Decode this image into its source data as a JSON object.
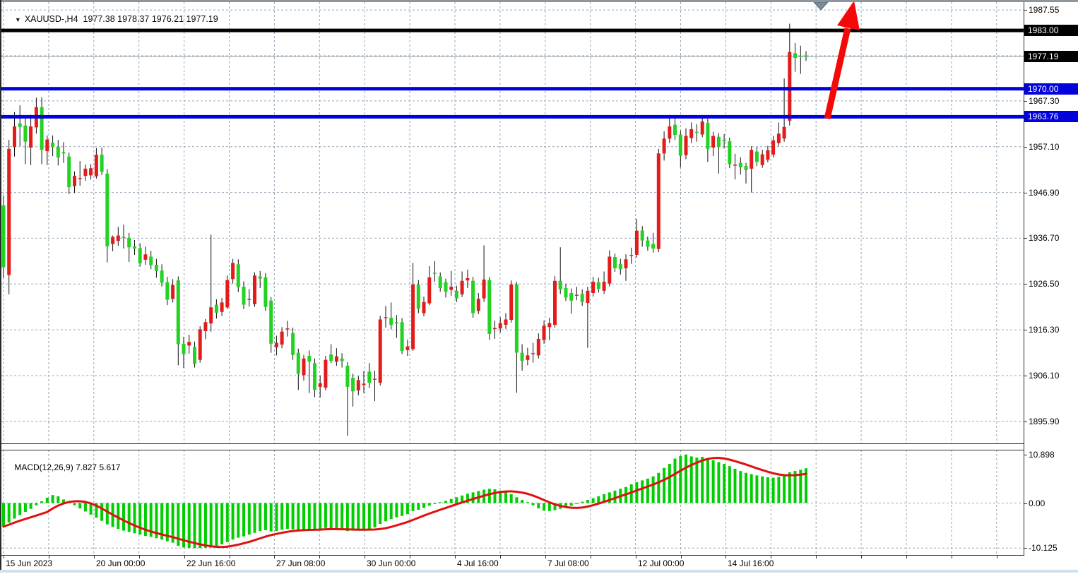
{
  "header": {
    "dropdown_icon": "triangle-down",
    "symbol_period": "XAUUSD-,H4",
    "open": "1977.38",
    "high": "1978.37",
    "low": "1976.21",
    "close": "1977.19"
  },
  "indicator_label": {
    "name": "MACD(12,26,9)",
    "main_value": "7.827",
    "signal_value": "5.617"
  },
  "price_axis": {
    "tick_labels": [
      "1987.55",
      "1967.30",
      "1957.10",
      "1946.90",
      "1936.70",
      "1926.50",
      "1916.30",
      "1906.10",
      "1895.90"
    ],
    "line_label_boxes": [
      {
        "text": "1983.00",
        "value": 1983.0,
        "bg": "#000000"
      },
      {
        "text": "1977.19",
        "value": 1977.19,
        "bg": "#000000"
      },
      {
        "text": "1970.00",
        "value": 1970.0,
        "bg": "#0202dd"
      },
      {
        "text": "1963.76",
        "value": 1963.76,
        "bg": "#0202dd"
      }
    ]
  },
  "macd_axis": [
    {
      "text": "10.898",
      "value": 10.898
    },
    {
      "text": "0.00",
      "value": 0.0
    },
    {
      "text": "-10.125",
      "value": -10.125
    }
  ],
  "chart_data": {
    "type": "candlestick",
    "symbol": "XAUUSD-",
    "timeframe": "H4",
    "ylim": [
      1891.0,
      1989.3
    ],
    "grid": true,
    "y_gridlines": [
      1987.55,
      1977.35,
      1967.3,
      1957.1,
      1946.9,
      1936.7,
      1926.5,
      1916.3,
      1906.1,
      1895.9
    ],
    "x_labels": [
      "15 Jun 2023",
      "20 Jun 00:00",
      "22 Jun 16:00",
      "27 Jun 08:00",
      "30 Jun 00:00",
      "4 Jul 16:00",
      "7 Jul 08:00",
      "12 Jul 00:00",
      "14 Jul 16:00"
    ],
    "bull_color": "#e31b1b",
    "bear_color": "#22d322",
    "wick_color": "#111111",
    "grid_color": "#97a7b7",
    "hlines": [
      {
        "value": 1983.0,
        "color": "#000000",
        "width": 5,
        "label": "1983.00"
      },
      {
        "value": 1970.0,
        "color": "#0202dd",
        "width": 5,
        "label": "1970.00"
      },
      {
        "value": 1963.76,
        "color": "#0202dd",
        "width": 5,
        "label": "1963.76"
      }
    ],
    "bid_line": {
      "value": 1977.19,
      "color": "#9aa4ae"
    },
    "candles": [
      [
        1944.0,
        1946.2,
        1927.8,
        1930.2
      ],
      [
        1928.5,
        1958.6,
        1924.2,
        1956.6
      ],
      [
        1957.0,
        1964.8,
        1954.9,
        1961.6
      ],
      [
        1962.3,
        1966.3,
        1957.2,
        1961.5
      ],
      [
        1961.8,
        1963.6,
        1953.2,
        1958.2
      ],
      [
        1956.9,
        1964.2,
        1953.0,
        1961.6
      ],
      [
        1961.4,
        1968.0,
        1960.0,
        1965.9
      ],
      [
        1965.9,
        1968.1,
        1953.2,
        1956.4
      ],
      [
        1956.1,
        1959.6,
        1953.0,
        1958.7
      ],
      [
        1958.0,
        1959.6,
        1955.0,
        1957.0
      ],
      [
        1957.1,
        1958.6,
        1952.9,
        1954.7
      ],
      [
        1955.9,
        1958.1,
        1953.5,
        1955.6
      ],
      [
        1954.9,
        1955.8,
        1946.5,
        1948.1
      ],
      [
        1948.3,
        1951.6,
        1946.8,
        1950.6
      ],
      [
        1950.0,
        1953.9,
        1948.4,
        1950.1
      ],
      [
        1950.6,
        1953.1,
        1949.5,
        1952.2
      ],
      [
        1950.7,
        1953.2,
        1949.8,
        1952.3
      ],
      [
        1950.5,
        1956.8,
        1950.0,
        1955.3
      ],
      [
        1955.3,
        1956.9,
        1950.8,
        1951.5
      ],
      [
        1951.1,
        1952.1,
        1931.3,
        1934.9
      ],
      [
        1935.4,
        1937.3,
        1933.8,
        1937.0
      ],
      [
        1936.1,
        1939.2,
        1935.0,
        1937.3
      ],
      [
        1937.0,
        1939.7,
        1934.4,
        1936.8
      ],
      [
        1936.8,
        1937.9,
        1931.4,
        1934.7
      ],
      [
        1934.9,
        1936.3,
        1933.0,
        1934.4
      ],
      [
        1934.5,
        1935.6,
        1930.4,
        1931.1
      ],
      [
        1931.9,
        1934.8,
        1930.8,
        1933.1
      ],
      [
        1932.6,
        1933.9,
        1929.8,
        1930.7
      ],
      [
        1930.8,
        1932.1,
        1927.9,
        1929.4
      ],
      [
        1929.5,
        1930.9,
        1925.9,
        1926.8
      ],
      [
        1926.9,
        1928.1,
        1921.8,
        1923.0
      ],
      [
        1923.2,
        1927.6,
        1922.4,
        1926.3
      ],
      [
        1927.3,
        1928.2,
        1908.4,
        1913.1
      ],
      [
        1913.2,
        1914.7,
        1907.8,
        1910.9
      ],
      [
        1912.8,
        1915.2,
        1911.0,
        1913.6
      ],
      [
        1912.5,
        1913.7,
        1907.9,
        1908.7
      ],
      [
        1909.6,
        1917.1,
        1909.0,
        1916.4
      ],
      [
        1916.0,
        1918.7,
        1914.2,
        1918.0
      ],
      [
        1917.7,
        1937.5,
        1915.9,
        1921.3
      ],
      [
        1921.9,
        1923.1,
        1918.8,
        1920.1
      ],
      [
        1920.3,
        1923.4,
        1919.4,
        1922.4
      ],
      [
        1921.3,
        1928.4,
        1920.9,
        1927.4
      ],
      [
        1927.6,
        1932.1,
        1926.6,
        1931.2
      ],
      [
        1930.9,
        1932.0,
        1924.7,
        1925.8
      ],
      [
        1925.9,
        1927.1,
        1920.9,
        1921.9
      ],
      [
        1923.0,
        1925.4,
        1921.5,
        1923.2
      ],
      [
        1922.0,
        1929.1,
        1921.4,
        1928.4
      ],
      [
        1928.2,
        1929.4,
        1925.6,
        1927.7
      ],
      [
        1928.0,
        1928.9,
        1920.5,
        1921.4
      ],
      [
        1922.8,
        1923.6,
        1911.2,
        1913.2
      ],
      [
        1912.4,
        1915.0,
        1910.6,
        1913.4
      ],
      [
        1913.0,
        1916.9,
        1912.2,
        1915.9
      ],
      [
        1916.4,
        1918.3,
        1914.8,
        1916.6
      ],
      [
        1915.6,
        1916.8,
        1909.6,
        1910.7
      ],
      [
        1911.2,
        1912.1,
        1902.9,
        1906.5
      ],
      [
        1906.2,
        1910.7,
        1905.0,
        1909.9
      ],
      [
        1910.5,
        1911.7,
        1902.2,
        1909.2
      ],
      [
        1908.9,
        1909.9,
        1901.3,
        1902.9
      ],
      [
        1903.6,
        1906.1,
        1901.2,
        1904.4
      ],
      [
        1903.4,
        1910.5,
        1902.8,
        1909.6
      ],
      [
        1910.8,
        1913.1,
        1908.9,
        1909.4
      ],
      [
        1909.2,
        1912.2,
        1908.3,
        1910.4
      ],
      [
        1909.9,
        1911.1,
        1907.9,
        1909.3
      ],
      [
        1908.3,
        1909.1,
        1892.7,
        1903.6
      ],
      [
        1905.6,
        1906.5,
        1899.2,
        1902.6
      ],
      [
        1902.8,
        1906.0,
        1901.7,
        1905.1
      ],
      [
        1904.0,
        1907.1,
        1902.2,
        1904.3
      ],
      [
        1907.0,
        1908.9,
        1903.3,
        1904.5
      ],
      [
        1905.2,
        1907.2,
        1900.4,
        1905.4
      ],
      [
        1904.5,
        1919.4,
        1903.9,
        1918.6
      ],
      [
        1919.0,
        1921.6,
        1916.8,
        1919.1
      ],
      [
        1919.0,
        1922.4,
        1916.4,
        1917.4
      ],
      [
        1918.0,
        1919.6,
        1914.5,
        1917.7
      ],
      [
        1918.0,
        1918.9,
        1910.9,
        1911.6
      ],
      [
        1911.8,
        1914.1,
        1910.5,
        1912.6
      ],
      [
        1912.0,
        1931.2,
        1911.6,
        1926.4
      ],
      [
        1926.4,
        1927.4,
        1920.0,
        1921.0
      ],
      [
        1920.0,
        1923.7,
        1919.3,
        1922.5
      ],
      [
        1922.2,
        1930.5,
        1921.8,
        1928.0
      ],
      [
        1929.0,
        1931.6,
        1927.0,
        1928.9
      ],
      [
        1928.2,
        1929.1,
        1924.8,
        1925.6
      ],
      [
        1926.9,
        1927.7,
        1923.5,
        1924.8
      ],
      [
        1925.2,
        1929.4,
        1923.9,
        1925.9
      ],
      [
        1925.0,
        1926.1,
        1922.5,
        1923.3
      ],
      [
        1924.2,
        1929.3,
        1923.6,
        1927.2
      ],
      [
        1927.3,
        1929.7,
        1925.6,
        1927.8
      ],
      [
        1927.2,
        1928.1,
        1919.0,
        1920.0
      ],
      [
        1920.5,
        1924.5,
        1919.8,
        1923.2
      ],
      [
        1923.3,
        1935.1,
        1922.5,
        1927.5
      ],
      [
        1927.4,
        1928.1,
        1914.1,
        1915.4
      ],
      [
        1916.5,
        1918.3,
        1914.3,
        1916.7
      ],
      [
        1916.6,
        1919.1,
        1915.7,
        1917.8
      ],
      [
        1917.4,
        1920.0,
        1916.5,
        1918.6
      ],
      [
        1918.5,
        1927.3,
        1917.9,
        1926.4
      ],
      [
        1926.4,
        1927.0,
        1902.3,
        1911.2
      ],
      [
        1911.2,
        1913.1,
        1907.2,
        1909.4
      ],
      [
        1909.6,
        1912.3,
        1908.4,
        1910.6
      ],
      [
        1911.0,
        1913.4,
        1909.0,
        1911.1
      ],
      [
        1910.6,
        1915.5,
        1909.9,
        1914.3
      ],
      [
        1914.0,
        1918.4,
        1913.2,
        1917.2
      ],
      [
        1916.9,
        1919.0,
        1914.0,
        1917.8
      ],
      [
        1917.4,
        1928.3,
        1916.8,
        1927.2
      ],
      [
        1927.2,
        1934.7,
        1924.3,
        1925.3
      ],
      [
        1925.6,
        1926.6,
        1922.7,
        1923.5
      ],
      [
        1924.5,
        1925.5,
        1919.9,
        1922.8
      ],
      [
        1924.0,
        1925.9,
        1922.9,
        1924.1
      ],
      [
        1924.3,
        1925.3,
        1921.6,
        1922.5
      ],
      [
        1922.3,
        1925.9,
        1912.3,
        1925.0
      ],
      [
        1924.5,
        1928.1,
        1923.7,
        1927.0
      ],
      [
        1926.9,
        1927.9,
        1924.6,
        1925.4
      ],
      [
        1925.0,
        1929.3,
        1924.3,
        1927.0
      ],
      [
        1926.6,
        1934.0,
        1926.0,
        1932.6
      ],
      [
        1932.5,
        1933.3,
        1929.2,
        1930.0
      ],
      [
        1931.0,
        1932.1,
        1928.6,
        1929.8
      ],
      [
        1930.0,
        1933.1,
        1927.2,
        1932.0
      ],
      [
        1932.8,
        1934.6,
        1931.0,
        1933.0
      ],
      [
        1933.0,
        1941.0,
        1932.4,
        1938.4
      ],
      [
        1938.4,
        1939.4,
        1934.8,
        1936.2
      ],
      [
        1936.2,
        1937.1,
        1933.9,
        1934.8
      ],
      [
        1935.4,
        1937.9,
        1933.5,
        1934.4
      ],
      [
        1934.3,
        1956.6,
        1933.6,
        1955.6
      ],
      [
        1955.6,
        1960.5,
        1954.0,
        1958.9
      ],
      [
        1958.9,
        1963.5,
        1957.9,
        1961.6
      ],
      [
        1962.0,
        1963.9,
        1958.6,
        1959.7
      ],
      [
        1959.8,
        1960.7,
        1952.5,
        1955.1
      ],
      [
        1955.2,
        1961.2,
        1954.3,
        1959.5
      ],
      [
        1959.0,
        1962.5,
        1957.9,
        1961.0
      ],
      [
        1960.4,
        1962.1,
        1958.2,
        1960.3
      ],
      [
        1959.8,
        1963.7,
        1959.2,
        1962.7
      ],
      [
        1962.4,
        1963.3,
        1953.7,
        1956.6
      ],
      [
        1956.9,
        1960.4,
        1955.0,
        1959.5
      ],
      [
        1959.3,
        1960.1,
        1951.1,
        1957.0
      ],
      [
        1958.6,
        1959.9,
        1956.7,
        1958.3
      ],
      [
        1958.3,
        1959.1,
        1952.3,
        1953.2
      ],
      [
        1953.0,
        1955.5,
        1949.8,
        1953.1
      ],
      [
        1953.5,
        1954.7,
        1950.9,
        1952.5
      ],
      [
        1952.8,
        1953.5,
        1948.9,
        1951.9
      ],
      [
        1952.2,
        1957.2,
        1946.9,
        1956.4
      ],
      [
        1956.0,
        1957.0,
        1952.8,
        1953.7
      ],
      [
        1953.0,
        1956.4,
        1952.4,
        1955.4
      ],
      [
        1954.2,
        1957.3,
        1953.6,
        1956.3
      ],
      [
        1955.3,
        1959.5,
        1954.7,
        1958.5
      ],
      [
        1957.9,
        1962.5,
        1957.2,
        1960.0
      ],
      [
        1958.9,
        1972.3,
        1958.2,
        1961.5
      ],
      [
        1962.9,
        1984.5,
        1961.8,
        1978.2
      ],
      [
        1977.9,
        1980.2,
        1973.8,
        1976.9
      ],
      [
        1977.3,
        1979.6,
        1973.3,
        1977.2
      ],
      [
        1977.38,
        1978.37,
        1976.21,
        1977.19
      ]
    ],
    "macd": {
      "params": "12,26,9",
      "last_main": 7.827,
      "last_signal": 5.617,
      "ylim": [
        -11.9,
        12.0
      ],
      "histogram_color": "#00ce00",
      "signal_color": "#e01010",
      "histogram": [
        -5.3,
        -4.4,
        -3.5,
        -2.7,
        -2.0,
        -1.3,
        -0.5,
        0.4,
        1.2,
        1.8,
        1.5,
        0.8,
        0.2,
        -0.5,
        -1.2,
        -1.9,
        -2.6,
        -3.3,
        -4.0,
        -4.8,
        -5.4,
        -5.8,
        -6.2,
        -6.5,
        -6.8,
        -7.1,
        -7.4,
        -7.6,
        -7.9,
        -8.2,
        -8.6,
        -8.9,
        -9.6,
        -10.0,
        -10.1,
        -10.125,
        -10.1,
        -10.05,
        -10.0,
        -9.7,
        -9.3,
        -8.8,
        -8.2,
        -7.8,
        -7.5,
        -7.1,
        -6.7,
        -6.3,
        -6.1,
        -6.4,
        -6.3,
        -6.0,
        -5.8,
        -5.9,
        -6.1,
        -5.9,
        -5.8,
        -6.0,
        -5.9,
        -5.6,
        -5.7,
        -5.9,
        -6.1,
        -6.3,
        -6.2,
        -6.1,
        -6.0,
        -5.8,
        -5.5,
        -4.7,
        -4.1,
        -3.6,
        -3.2,
        -2.9,
        -2.5,
        -1.8,
        -1.5,
        -1.1,
        -0.6,
        -0.2,
        0.2,
        0.5,
        0.9,
        1.3,
        1.7,
        2.1,
        2.4,
        2.7,
        3.0,
        3.2,
        3.1,
        2.8,
        2.4,
        2.0,
        1.3,
        0.7,
        0.2,
        -0.5,
        -1.2,
        -1.7,
        -1.8,
        -1.6,
        -1.3,
        -1.0,
        -0.6,
        -0.2,
        0.3,
        0.7,
        1.1,
        1.5,
        2.0,
        2.4,
        2.8,
        3.2,
        3.6,
        4.2,
        4.7,
        5.1,
        5.5,
        6.0,
        6.8,
        7.9,
        8.8,
        10.0,
        10.6,
        10.898,
        10.5,
        10.2,
        10.4,
        10.0,
        9.6,
        9.2,
        8.8,
        8.3,
        7.7,
        7.2,
        6.8,
        6.5,
        6.2,
        6.0,
        5.8,
        5.7,
        5.9,
        6.3,
        6.9,
        7.2,
        7.5,
        7.827
      ]
    },
    "annotations": [
      {
        "type": "up-arrow",
        "color": "#f50808"
      },
      {
        "type": "chart-shift-marker",
        "color": "#7a8c9c"
      }
    ]
  }
}
